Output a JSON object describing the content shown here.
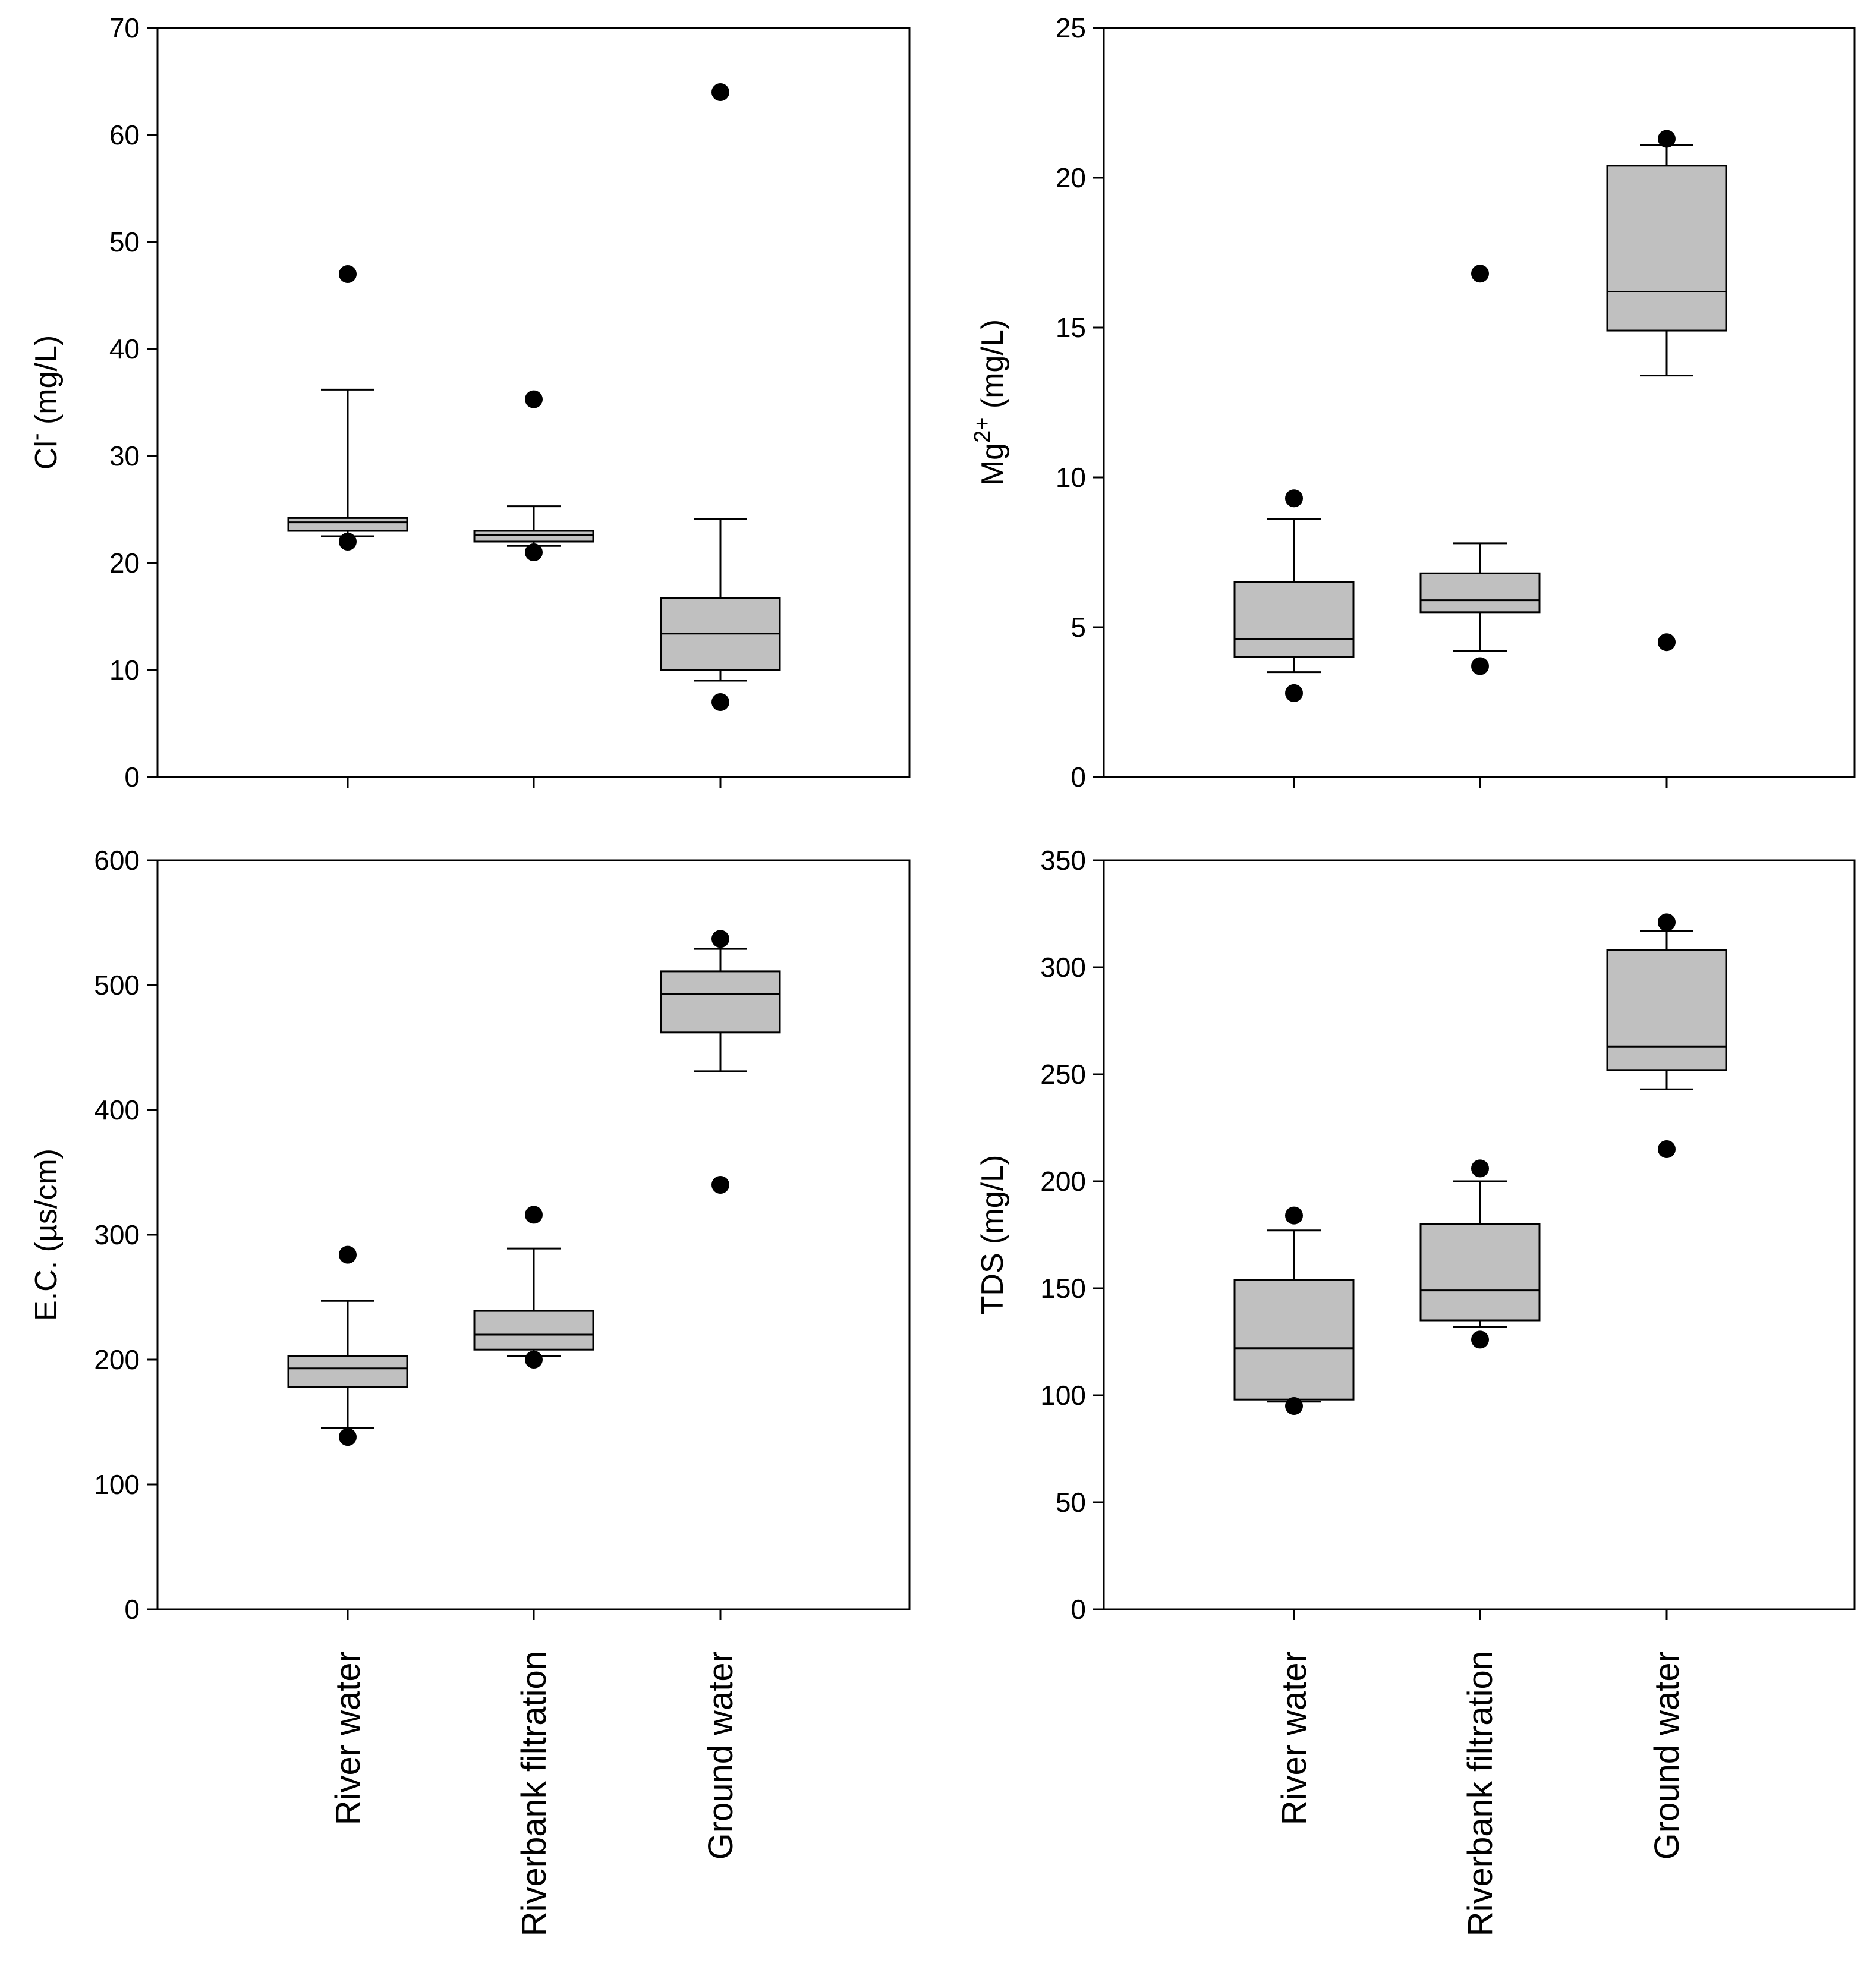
{
  "figure": {
    "categories": [
      "River water",
      "Riverbank filtration",
      "Ground water"
    ]
  },
  "chart_data": [
    {
      "type": "box",
      "id": "cl",
      "ylabel": "Cl",
      "ylabel_sup": "-",
      "ylabel_unit": " (mg/L)",
      "ylim": [
        0,
        70
      ],
      "yticks": [
        0,
        10,
        20,
        30,
        40,
        50,
        60,
        70
      ],
      "show_category_labels": false,
      "series": [
        {
          "category": "River water",
          "whisker_low": 22.5,
          "q1": 23,
          "median": 23.8,
          "q3": 24.2,
          "whisker_high": 36.2,
          "outliers": [
            47,
            22
          ]
        },
        {
          "category": "Riverbank filtration",
          "whisker_low": 21.6,
          "q1": 22,
          "median": 22.6,
          "q3": 23,
          "whisker_high": 25.3,
          "outliers": [
            35.3,
            21
          ]
        },
        {
          "category": "Ground water",
          "whisker_low": 9,
          "q1": 10,
          "median": 13.4,
          "q3": 16.7,
          "whisker_high": 24.1,
          "outliers": [
            64,
            7
          ]
        }
      ]
    },
    {
      "type": "box",
      "id": "mg",
      "ylabel": "Mg",
      "ylabel_sup": "2+",
      "ylabel_unit": " (mg/L)",
      "ylim": [
        0,
        25
      ],
      "yticks": [
        0,
        5,
        10,
        15,
        20,
        25
      ],
      "show_category_labels": false,
      "series": [
        {
          "category": "River water",
          "whisker_low": 3.5,
          "q1": 4,
          "median": 4.6,
          "q3": 6.5,
          "whisker_high": 8.6,
          "outliers": [
            9.3,
            2.8
          ]
        },
        {
          "category": "Riverbank filtration",
          "whisker_low": 4.2,
          "q1": 5.5,
          "median": 5.9,
          "q3": 6.8,
          "whisker_high": 7.8,
          "outliers": [
            16.8,
            3.7
          ]
        },
        {
          "category": "Ground water",
          "whisker_low": 13.4,
          "q1": 14.9,
          "median": 16.2,
          "q3": 20.4,
          "whisker_high": 21.1,
          "outliers": [
            21.3,
            4.5
          ]
        }
      ]
    },
    {
      "type": "box",
      "id": "ec",
      "ylabel": "E.C. (µs/cm)",
      "ylabel_sup": "",
      "ylabel_unit": "",
      "ylim": [
        0,
        600
      ],
      "yticks": [
        0,
        100,
        200,
        300,
        400,
        500,
        600
      ],
      "show_category_labels": true,
      "series": [
        {
          "category": "River water",
          "whisker_low": 145,
          "q1": 178,
          "median": 193,
          "q3": 203,
          "whisker_high": 247,
          "outliers": [
            284,
            138
          ]
        },
        {
          "category": "Riverbank filtration",
          "whisker_low": 203,
          "q1": 208,
          "median": 220,
          "q3": 239,
          "whisker_high": 289,
          "outliers": [
            316,
            200
          ]
        },
        {
          "category": "Ground water",
          "whisker_low": 431,
          "q1": 462,
          "median": 493,
          "q3": 511,
          "whisker_high": 529,
          "outliers": [
            537,
            340
          ]
        }
      ]
    },
    {
      "type": "box",
      "id": "tds",
      "ylabel": "TDS (mg/L)",
      "ylabel_sup": "",
      "ylabel_unit": "",
      "ylim": [
        0,
        350
      ],
      "yticks": [
        0,
        50,
        100,
        150,
        200,
        250,
        300,
        350
      ],
      "show_category_labels": true,
      "series": [
        {
          "category": "River water",
          "whisker_low": 97,
          "q1": 98,
          "median": 122,
          "q3": 154,
          "whisker_high": 177,
          "outliers": [
            184,
            95
          ]
        },
        {
          "category": "Riverbank filtration",
          "whisker_low": 132,
          "q1": 135,
          "median": 149,
          "q3": 180,
          "whisker_high": 200,
          "outliers": [
            206,
            126
          ]
        },
        {
          "category": "Ground water",
          "whisker_low": 243,
          "q1": 252,
          "median": 263,
          "q3": 308,
          "whisker_high": 317,
          "outliers": [
            321,
            215
          ]
        }
      ]
    }
  ]
}
